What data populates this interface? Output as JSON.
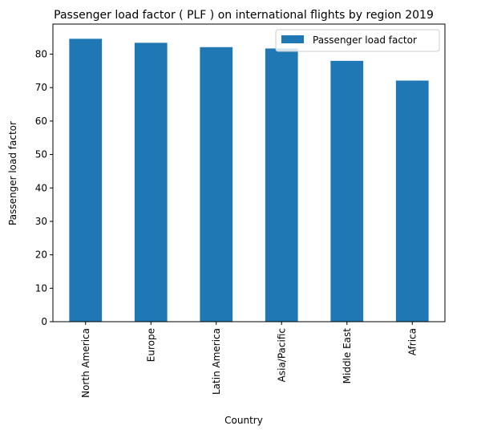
{
  "chart_data": {
    "type": "bar",
    "title": "Passenger load factor ( PLF ) on international flights by region 2019",
    "xlabel": "Country",
    "ylabel": "Passenger load factor",
    "categories": [
      "North America",
      "Europe",
      "Latin America",
      "Asia/Pacific",
      "Middle East",
      "Africa"
    ],
    "series": [
      {
        "name": "Passenger load factor",
        "values": [
          84.6,
          83.4,
          82.1,
          81.7,
          78.0,
          72.1
        ],
        "color": "#1f77b4"
      }
    ],
    "ylim": [
      0,
      89
    ],
    "yticks": [
      0,
      10,
      20,
      30,
      40,
      50,
      60,
      70,
      80
    ],
    "grid": false,
    "legend_position": "top-right"
  }
}
